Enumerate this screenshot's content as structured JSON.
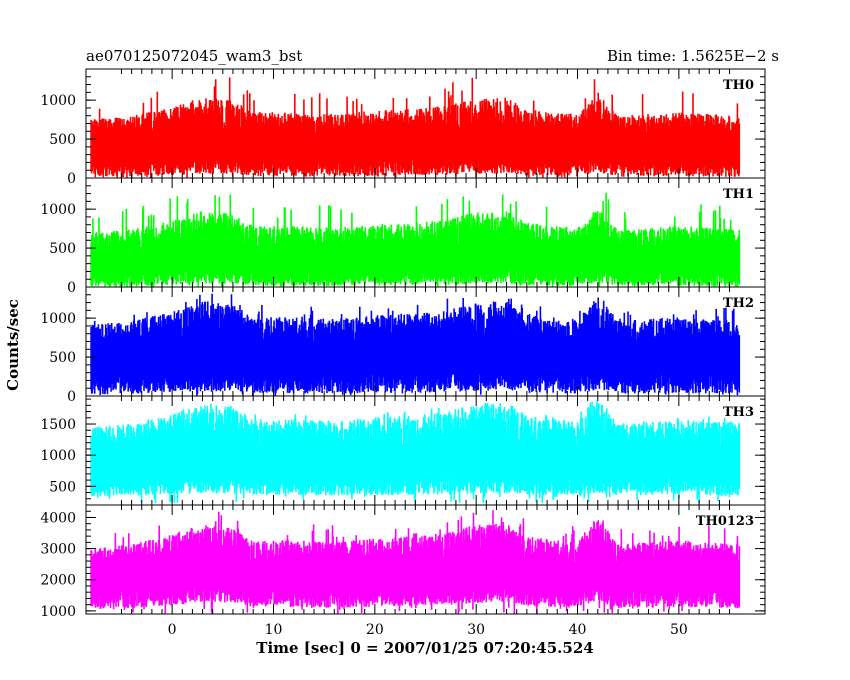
{
  "header": {
    "source_title": "ae070125072045_wam3_bst",
    "bin_time": "Bin time: 1.5625E−2 s"
  },
  "axes": {
    "xlabel": "Time [sec] 0 = 2007/01/25 07:20:45.524",
    "ylabel": "Counts/sec"
  },
  "chart_data": {
    "type": "line",
    "style": "histogram-step light curves, stacked panels sharing the x axis",
    "xlim": [
      -8.5,
      58.5
    ],
    "x_range_data": [
      -8,
      56
    ],
    "bin_time_s": 0.015625,
    "x_ticks": [
      0,
      10,
      20,
      30,
      40,
      50
    ],
    "x_tick_labels": [
      "0",
      "10",
      "20",
      "30",
      "40",
      "50"
    ],
    "grid": false,
    "profile_knots_time": [
      -8,
      -4,
      0,
      3,
      6,
      8,
      12,
      16,
      20,
      24,
      27,
      30,
      33,
      35,
      38,
      40,
      41,
      42,
      43,
      44,
      47,
      50,
      53,
      56
    ],
    "profile_knots_level": [
      0.2,
      0.3,
      0.55,
      0.85,
      0.75,
      0.4,
      0.4,
      0.35,
      0.45,
      0.5,
      0.6,
      0.8,
      0.85,
      0.5,
      0.4,
      0.35,
      0.7,
      1.0,
      0.65,
      0.3,
      0.35,
      0.4,
      0.35,
      0.3
    ],
    "series": [
      {
        "name": "TH0",
        "color": "#ff0000",
        "ylim": [
          0,
          1400
        ],
        "yticks": [
          0,
          500,
          1000
        ],
        "ytick_labels": [
          "0",
          "500",
          "1000"
        ],
        "baseline": 510,
        "modulation": 80,
        "high_extent": 560,
        "low_extent": 480,
        "peak_max": 1400,
        "floor": 0
      },
      {
        "name": "TH1",
        "color": "#00ff00",
        "ylim": [
          0,
          1400
        ],
        "yticks": [
          0,
          500,
          1000
        ],
        "ytick_labels": [
          "0",
          "500",
          "1000"
        ],
        "baseline": 450,
        "modulation": 70,
        "high_extent": 560,
        "low_extent": 430,
        "peak_max": 1350,
        "floor": 0
      },
      {
        "name": "TH2",
        "color": "#0000ff",
        "ylim": [
          0,
          1400
        ],
        "yticks": [
          0,
          500,
          1000
        ],
        "ytick_labels": [
          "0",
          "500",
          "1000"
        ],
        "baseline": 640,
        "modulation": 70,
        "high_extent": 620,
        "low_extent": 600,
        "peak_max": 1400,
        "floor": 0
      },
      {
        "name": "TH3",
        "color": "#00ffff",
        "ylim": [
          200,
          1950
        ],
        "yticks": [
          500,
          1000,
          1500
        ],
        "ytick_labels": [
          "500",
          "1000",
          "1500"
        ],
        "baseline": 1060,
        "modulation": 60,
        "high_extent": 860,
        "low_extent": 700,
        "peak_max": 1950,
        "floor": 220
      },
      {
        "name": "TH0123",
        "color": "#ff00ff",
        "ylim": [
          900,
          4400
        ],
        "yticks": [
          1000,
          2000,
          3000,
          4000
        ],
        "ytick_labels": [
          "1000",
          "2000",
          "3000",
          "4000"
        ],
        "baseline": 2450,
        "modulation": 350,
        "high_extent": 1400,
        "low_extent": 1300,
        "peak_max": 4400,
        "floor": 900
      }
    ]
  }
}
